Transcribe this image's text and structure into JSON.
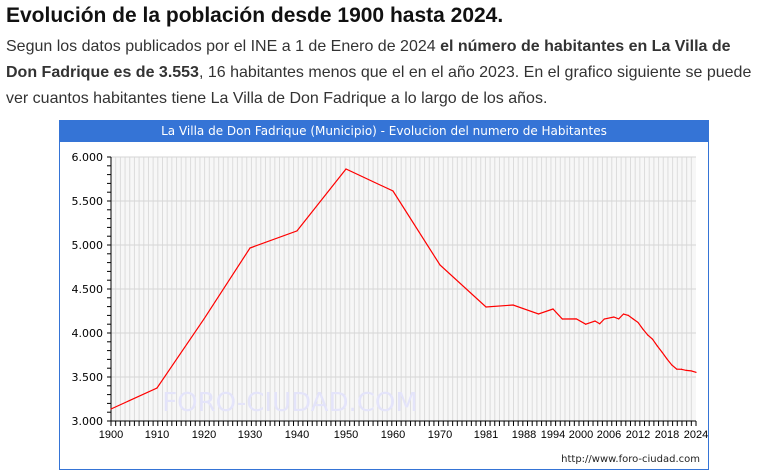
{
  "heading": "Evolución de la población desde 1900 hasta 2024.",
  "intro": {
    "p1": "Segun los datos publicados por el INE a 1 de Enero de 2024 ",
    "bold": "el número de habitantes en La Villa de Don Fadrique es de 3.553",
    "p2": ", 16 habitantes menos que el en el año 2023. En el grafico siguiente se puede ver cuantos habitantes tiene La Villa de Don Fadrique a lo largo de los años."
  },
  "chart_data": {
    "type": "line",
    "title": "La Villa de Don Fadrique (Municipio) - Evolucion del numero de Habitantes",
    "xlabel": "",
    "ylabel": "",
    "ylim": [
      3000,
      6000
    ],
    "y_ticks": [
      "3.000",
      "3.500",
      "4.000",
      "4.500",
      "5.000",
      "5.500",
      "6.000"
    ],
    "x_ticks": [
      "1900",
      "1910",
      "1920",
      "1930",
      "1940",
      "1950",
      "1960",
      "1970",
      "1981",
      "1988",
      "1994",
      "2000",
      "2006",
      "2012",
      "2018",
      "2024"
    ],
    "series_color": "#ff0000",
    "watermark": "FORO-CIUDAD.COM",
    "credit": "http://www.foro-ciudad.com",
    "points": [
      [
        1900,
        3136
      ],
      [
        1910,
        3375
      ],
      [
        1920,
        4160
      ],
      [
        1930,
        4966
      ],
      [
        1940,
        5160
      ],
      [
        1950,
        5864
      ],
      [
        1960,
        5614
      ],
      [
        1970,
        4773
      ],
      [
        1981,
        4295
      ],
      [
        1986,
        4318
      ],
      [
        1991,
        4216
      ],
      [
        1994,
        4273
      ],
      [
        1996,
        4159
      ],
      [
        1999,
        4160
      ],
      [
        2001,
        4100
      ],
      [
        2003,
        4136
      ],
      [
        2004,
        4105
      ],
      [
        2005,
        4159
      ],
      [
        2007,
        4182
      ],
      [
        2008,
        4160
      ],
      [
        2009,
        4216
      ],
      [
        2010,
        4200
      ],
      [
        2011,
        4159
      ],
      [
        2012,
        4120
      ],
      [
        2013,
        4045
      ],
      [
        2014,
        3977
      ],
      [
        2015,
        3930
      ],
      [
        2016,
        3852
      ],
      [
        2017,
        3780
      ],
      [
        2018,
        3705
      ],
      [
        2019,
        3636
      ],
      [
        2020,
        3590
      ],
      [
        2021,
        3588
      ],
      [
        2022,
        3575
      ],
      [
        2023,
        3569
      ],
      [
        2024,
        3553
      ]
    ]
  }
}
